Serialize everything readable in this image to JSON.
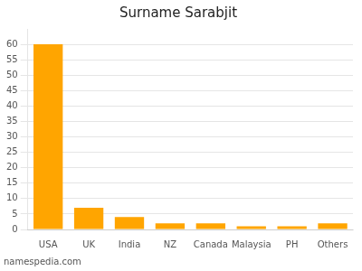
{
  "chart_data": {
    "type": "bar",
    "title": "Surname Sarabjit",
    "categories": [
      "USA",
      "UK",
      "India",
      "NZ",
      "Canada",
      "Malaysia",
      "PH",
      "Others"
    ],
    "values": [
      60,
      7,
      4,
      2,
      2,
      1,
      1,
      2
    ],
    "color": "#FFA500",
    "ylim": [
      0,
      65
    ],
    "yticks": [
      0,
      5,
      10,
      15,
      20,
      25,
      30,
      35,
      40,
      45,
      50,
      55,
      60
    ],
    "grid": true,
    "annotations": [
      "namespedia.com"
    ]
  }
}
